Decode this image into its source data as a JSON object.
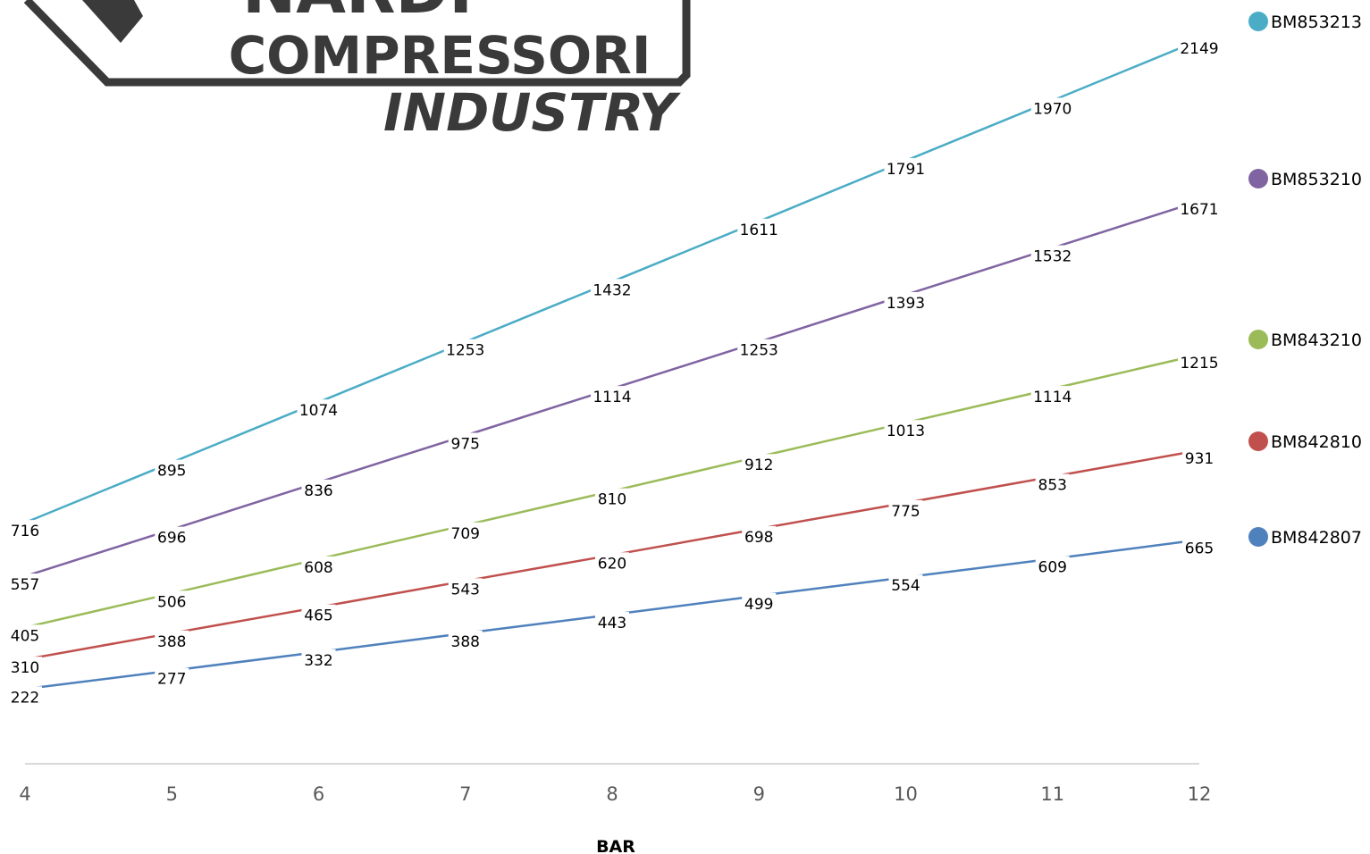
{
  "logo": {
    "brand_line1": "NARDI",
    "brand_line2": "COMPRESSORI",
    "brand_line3": "INDUSTRY"
  },
  "chart_data": {
    "type": "line",
    "title": "",
    "xlabel": "BAR",
    "ylabel": "",
    "x": [
      4,
      5,
      6,
      7,
      8,
      9,
      10,
      11,
      12
    ],
    "ylim": [
      0,
      2300
    ],
    "grid": false,
    "legend_position": "right",
    "series": [
      {
        "name": "BM853213",
        "color": "#4bacc6",
        "values": [
          716,
          895,
          1074,
          1253,
          1432,
          1611,
          1791,
          1970,
          2149
        ]
      },
      {
        "name": "BM853210",
        "color": "#8064a2",
        "values": [
          557,
          696,
          836,
          975,
          1114,
          1253,
          1393,
          1532,
          1671
        ]
      },
      {
        "name": "BM843210",
        "color": "#9bbb59",
        "values": [
          405,
          506,
          608,
          709,
          810,
          912,
          1013,
          1114,
          1215
        ]
      },
      {
        "name": "BM842810",
        "color": "#c0504d",
        "values": [
          310,
          388,
          465,
          543,
          620,
          698,
          775,
          853,
          931
        ]
      },
      {
        "name": "BM842807",
        "color": "#4f81bd",
        "values": [
          222,
          277,
          332,
          388,
          443,
          499,
          554,
          609,
          665
        ]
      }
    ]
  }
}
